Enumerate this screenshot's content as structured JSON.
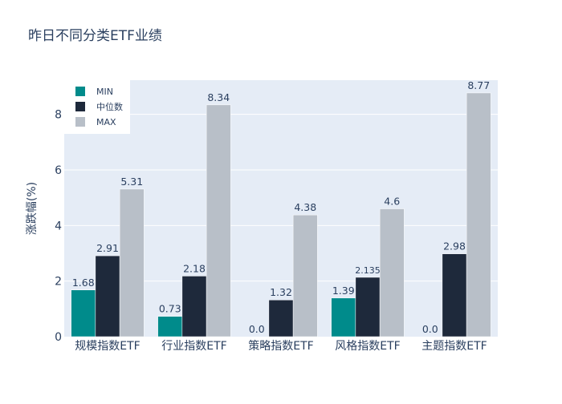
{
  "chart_data": {
    "type": "bar",
    "title": "昨日不同分类ETF业绩",
    "ylabel": "涨跌幅(%)",
    "xlabel": "",
    "categories": [
      "规模指数ETF",
      "行业指数ETF",
      "策略指数ETF",
      "风格指数ETF",
      "主题指数ETF"
    ],
    "series": [
      {
        "name": "MIN",
        "color": "#008b8b",
        "values": [
          1.68,
          0.73,
          0.0,
          1.39,
          0.0
        ],
        "labels": [
          "1.68",
          "0.73",
          "0.0",
          "1.39",
          "0.0"
        ]
      },
      {
        "name": "中位数",
        "color": "#1e293b",
        "values": [
          2.91,
          2.18,
          1.32,
          2.135,
          2.98
        ],
        "labels": [
          "2.91",
          "2.18",
          "1.32",
          "2.135",
          "2.98"
        ]
      },
      {
        "name": "MAX",
        "color": "#b8bfc8",
        "values": [
          5.31,
          8.34,
          4.38,
          4.6,
          8.77
        ],
        "labels": [
          "5.31",
          "8.34",
          "4.38",
          "4.6",
          "8.77"
        ]
      }
    ],
    "ylim": [
      0,
      9.23
    ],
    "yticks": [
      0,
      2,
      4,
      6,
      8
    ],
    "grid": true,
    "legend_position": "top-left",
    "plot_background": "#e5ecf6"
  }
}
